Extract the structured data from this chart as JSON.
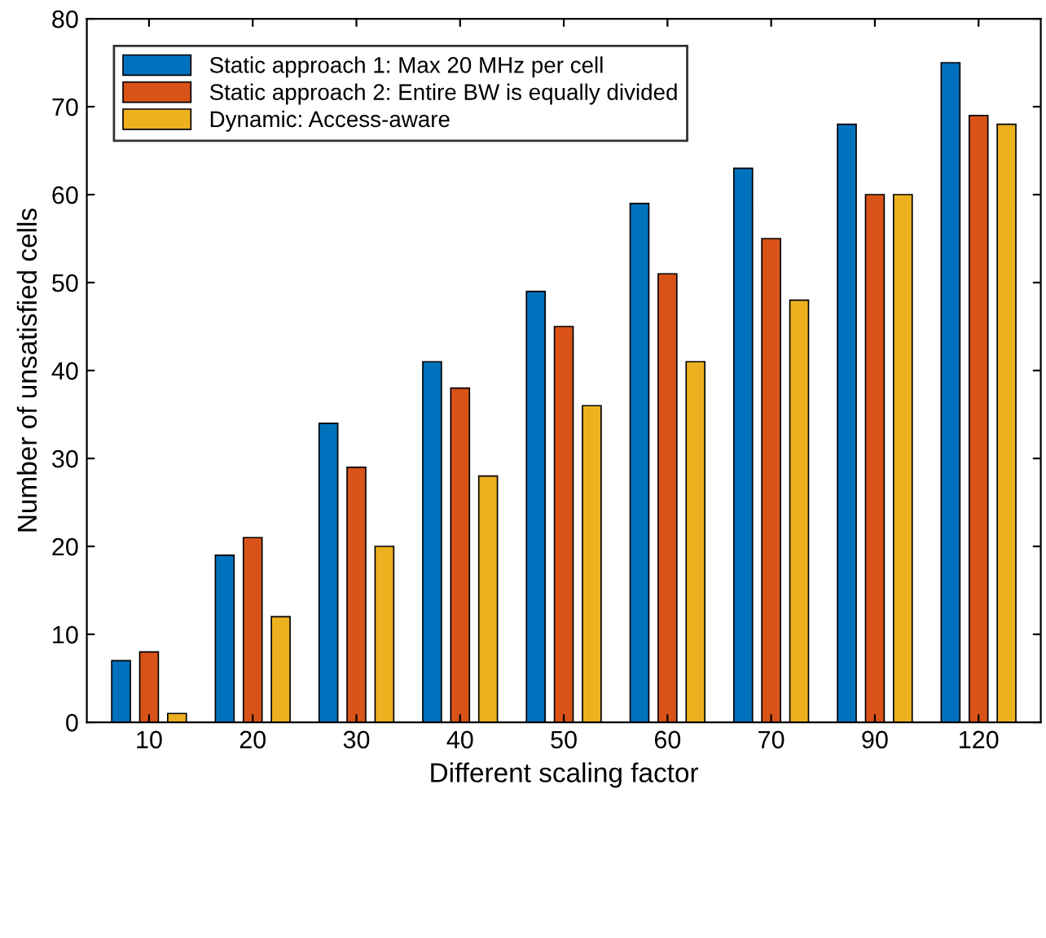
{
  "chart_data": {
    "type": "bar",
    "xlabel": "Different scaling factor",
    "ylabel": "Number of unsatisfied cells",
    "categories": [
      "10",
      "20",
      "30",
      "40",
      "50",
      "60",
      "70",
      "90",
      "120"
    ],
    "series": [
      {
        "name": "Static approach 1: Max 20 MHz per cell",
        "color": "#0072bd",
        "values": [
          7,
          19,
          34,
          41,
          49,
          59,
          63,
          68,
          75
        ]
      },
      {
        "name": "Static approach 2: Entire BW is equally divided",
        "color": "#d95319",
        "values": [
          8,
          21,
          29,
          38,
          45,
          51,
          55,
          60,
          69
        ]
      },
      {
        "name": "Dynamic: Access-aware",
        "color": "#edb120",
        "values": [
          1,
          12,
          20,
          28,
          36,
          41,
          48,
          60,
          68
        ]
      }
    ],
    "ylim": [
      0,
      80
    ],
    "yticks": [
      0,
      10,
      20,
      30,
      40,
      50,
      60,
      70,
      80
    ],
    "grid": false,
    "legend": "top left"
  }
}
